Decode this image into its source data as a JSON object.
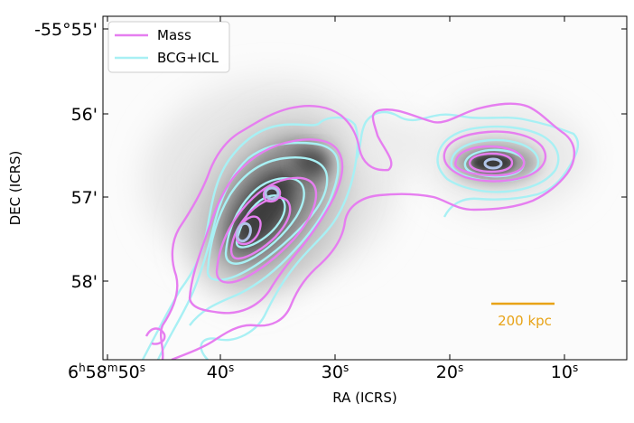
{
  "chart_data": {
    "type": "contour",
    "xlabel": "RA (ICRS)",
    "ylabel": "DEC (ICRS)",
    "x_ticks": [
      "6h58m50s",
      "40s",
      "30s",
      "20s",
      "10s"
    ],
    "y_ticks": [
      "-55°55'",
      "56'",
      "57'",
      "58'"
    ],
    "legend": {
      "placement": "top-left",
      "entries": [
        {
          "name": "Mass",
          "color": "#e67ef0"
        },
        {
          "name": "BCG+ICL",
          "color": "#a8f0f4"
        }
      ]
    },
    "background": "grayscale surface brightness map",
    "scale_bar": {
      "label": "200 kpc",
      "color": "#e8a317"
    },
    "inner_contour_color": "#b0c4e8"
  }
}
